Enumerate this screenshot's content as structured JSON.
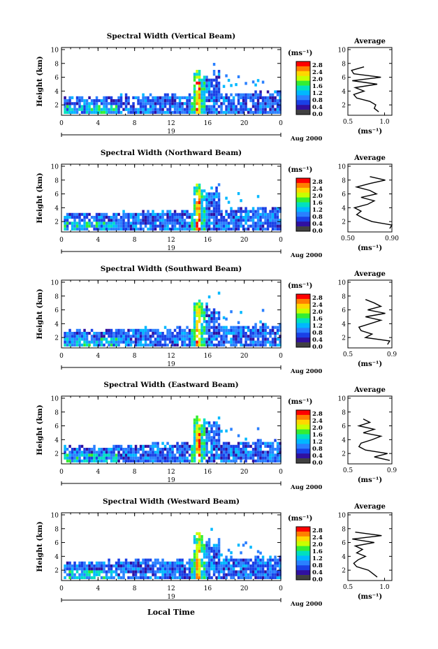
{
  "figure": {
    "xlabel": "Local Time",
    "date_label": "Aug 2000",
    "day_label": "19",
    "ylabel": "Height (km)",
    "cbar_unit": "(ms⁻¹)",
    "avg_title": "Average",
    "avg_xlabel": "(ms⁻¹)",
    "x_ticks": [
      "0",
      "4",
      "8",
      "12",
      "16",
      "20",
      "0"
    ],
    "y_ticks": [
      "10",
      "8",
      "6",
      "4",
      "2"
    ],
    "avg_y_ticks": [
      "10",
      "8",
      "6",
      "4",
      "2"
    ],
    "cbar_ticks": [
      "2.8",
      "2.4",
      "2.0",
      "1.6",
      "1.2",
      "0.8",
      "0.4",
      "0.0"
    ],
    "cbar_colors": [
      "#ff0000",
      "#ff7f00",
      "#ffd700",
      "#c8ff00",
      "#33ee33",
      "#00e0c0",
      "#00b8ff",
      "#2a80ff",
      "#1a40e6",
      "#3010a0",
      "#404040"
    ]
  },
  "chart_data": [
    {
      "type": "heatmap",
      "title": "Spectral Width (Vertical Beam)",
      "xlabel": "Local Time",
      "ylabel": "Height (km)",
      "xlim": [
        0,
        24
      ],
      "ylim": [
        0.5,
        10.3
      ],
      "colorbar": {
        "label": "(ms⁻¹)",
        "range": [
          0.0,
          3.0
        ]
      },
      "features": {
        "base_top_km": [
          2.8,
          3.7
        ],
        "convective_cell_time_h": 14.8,
        "cell_top_km": 7.2,
        "cell_peak_width_ms": 2.8
      },
      "average_profile": {
        "xlim": [
          0.5,
          1.1
        ],
        "x_ticks": [
          "0.5",
          "1.0"
        ],
        "height_km": [
          1.0,
          1.5,
          2.0,
          2.5,
          3.0,
          3.5,
          4.0,
          4.5,
          5.0,
          5.5,
          6.0,
          6.5,
          7.0,
          7.5
        ],
        "width_ms": [
          0.92,
          0.86,
          0.88,
          0.8,
          0.62,
          0.58,
          0.72,
          0.6,
          0.9,
          0.56,
          0.95,
          0.58,
          0.55,
          0.72
        ]
      }
    },
    {
      "type": "heatmap",
      "title": "Spectral Width (Northward Beam)",
      "xlabel": "Local Time",
      "ylabel": "Height (km)",
      "xlim": [
        0,
        24
      ],
      "ylim": [
        0.5,
        10.3
      ],
      "colorbar": {
        "label": "(ms⁻¹)",
        "range": [
          0.0,
          3.0
        ]
      },
      "features": {
        "base_top_km": [
          2.8,
          3.8
        ],
        "convective_cell_time_h": 14.8,
        "cell_top_km": 7.6,
        "cell_peak_width_ms": 2.8
      },
      "average_profile": {
        "xlim": [
          0.5,
          0.9
        ],
        "x_ticks": [
          "0.50",
          "0.90"
        ],
        "height_km": [
          1.0,
          1.5,
          2.0,
          2.5,
          3.0,
          3.5,
          4.0,
          4.5,
          5.0,
          5.5,
          6.0,
          6.5,
          7.0,
          7.5,
          8.0,
          8.5
        ],
        "width_ms": [
          0.88,
          0.9,
          0.72,
          0.64,
          0.58,
          0.62,
          0.56,
          0.68,
          0.74,
          0.62,
          0.76,
          0.7,
          0.58,
          0.7,
          0.84,
          0.7
        ]
      }
    },
    {
      "type": "heatmap",
      "title": "Spectral Width (Southward Beam)",
      "xlabel": "Local Time",
      "ylabel": "Height (km)",
      "xlim": [
        0,
        24
      ],
      "ylim": [
        0.5,
        10.3
      ],
      "colorbar": {
        "label": "(ms⁻¹)",
        "range": [
          0.0,
          3.0
        ]
      },
      "features": {
        "base_top_km": [
          2.6,
          3.6
        ],
        "convective_cell_time_h": 14.8,
        "cell_top_km": 7.4,
        "cell_peak_width_ms": 2.8
      },
      "average_profile": {
        "xlim": [
          0.5,
          0.9
        ],
        "x_ticks": [
          "0.5",
          "0.9"
        ],
        "height_km": [
          1.0,
          1.5,
          2.0,
          2.5,
          3.0,
          3.5,
          4.0,
          4.5,
          5.0,
          5.5,
          6.0,
          6.5,
          7.0,
          7.5
        ],
        "width_ms": [
          0.86,
          0.88,
          0.66,
          0.72,
          0.62,
          0.6,
          0.7,
          0.8,
          0.66,
          0.84,
          0.68,
          0.8,
          0.74,
          0.66
        ]
      }
    },
    {
      "type": "heatmap",
      "title": "Spectral Width (Eastward Beam)",
      "xlabel": "Local Time",
      "ylabel": "Height (km)",
      "xlim": [
        0,
        24
      ],
      "ylim": [
        0.5,
        10.3
      ],
      "colorbar": {
        "label": "(ms⁻¹)",
        "range": [
          0.0,
          3.0
        ]
      },
      "features": {
        "base_top_km": [
          2.7,
          3.7
        ],
        "convective_cell_time_h": 14.8,
        "cell_top_km": 7.3,
        "cell_peak_width_ms": 2.8
      },
      "average_profile": {
        "xlim": [
          0.5,
          0.9
        ],
        "x_ticks": [
          "0.5",
          "0.9"
        ],
        "height_km": [
          1.0,
          1.5,
          2.0,
          2.5,
          3.0,
          3.5,
          4.0,
          4.5,
          5.0,
          5.5,
          6.0,
          6.5,
          7.0
        ],
        "width_ms": [
          0.88,
          0.74,
          0.86,
          0.66,
          0.6,
          0.62,
          0.72,
          0.8,
          0.64,
          0.74,
          0.6,
          0.7,
          0.64
        ]
      }
    },
    {
      "type": "heatmap",
      "title": "Spectral Width (Westward Beam)",
      "xlabel": "Local Time",
      "ylabel": "Height (km)",
      "xlim": [
        0,
        24
      ],
      "ylim": [
        0.5,
        10.3
      ],
      "colorbar": {
        "label": "(ms⁻¹)",
        "range": [
          0.0,
          3.0
        ]
      },
      "features": {
        "base_top_km": [
          2.8,
          3.8
        ],
        "convective_cell_time_h": 14.8,
        "cell_top_km": 7.6,
        "cell_peak_width_ms": 2.8
      },
      "average_profile": {
        "xlim": [
          0.5,
          1.1
        ],
        "x_ticks": [
          "0.5",
          "1.0"
        ],
        "height_km": [
          1.0,
          1.5,
          2.0,
          2.5,
          3.0,
          3.5,
          4.0,
          4.5,
          5.0,
          5.5,
          6.0,
          6.5,
          7.0,
          7.5
        ],
        "width_ms": [
          0.9,
          0.84,
          0.78,
          0.62,
          0.58,
          0.64,
          0.74,
          0.62,
          0.7,
          0.6,
          0.86,
          0.56,
          0.96,
          0.6
        ]
      }
    }
  ]
}
